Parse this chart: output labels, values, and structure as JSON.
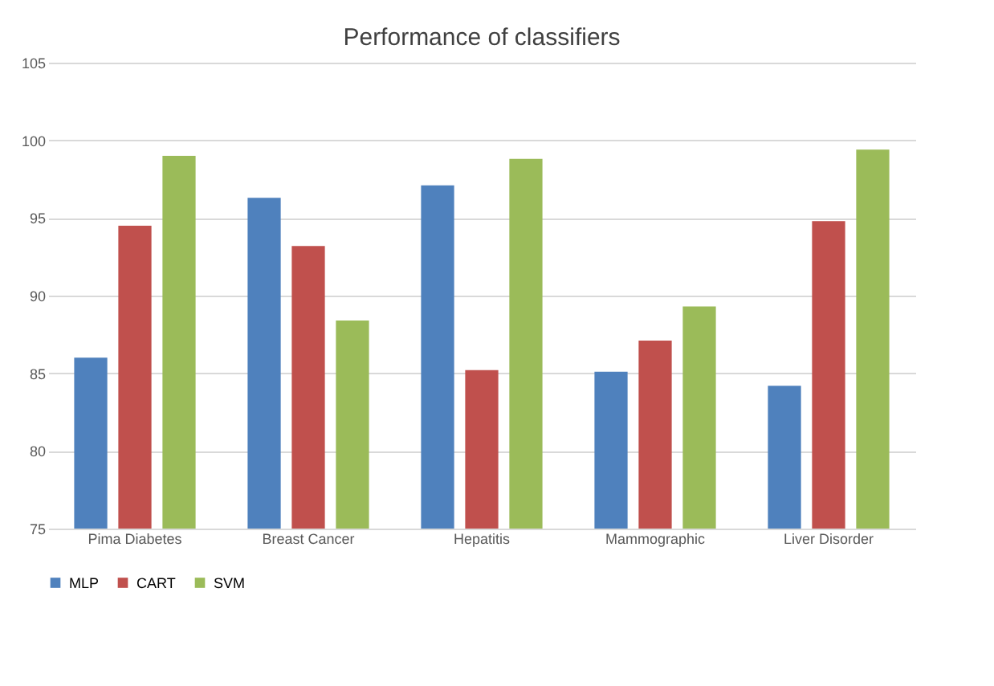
{
  "chart_data": {
    "type": "bar",
    "title": "Performance of classifiers",
    "categories": [
      "Pima Diabetes",
      "Breast Cancer",
      "Hepatitis",
      "Mammographic",
      "Liver Disorder"
    ],
    "series": [
      {
        "name": "MLP",
        "color": "#4f81bd",
        "values": [
          86.0,
          96.3,
          97.1,
          85.1,
          84.2
        ]
      },
      {
        "name": "CART",
        "color": "#c0504d",
        "values": [
          94.5,
          93.2,
          85.2,
          87.1,
          94.8
        ]
      },
      {
        "name": "SVM",
        "color": "#9bbb59",
        "values": [
          99.0,
          88.4,
          98.8,
          89.3,
          99.4
        ]
      }
    ],
    "ylim": [
      75,
      105
    ],
    "yticks": [
      75,
      80,
      85,
      90,
      95,
      100,
      105
    ],
    "grid": "y",
    "legend": "bottom"
  }
}
